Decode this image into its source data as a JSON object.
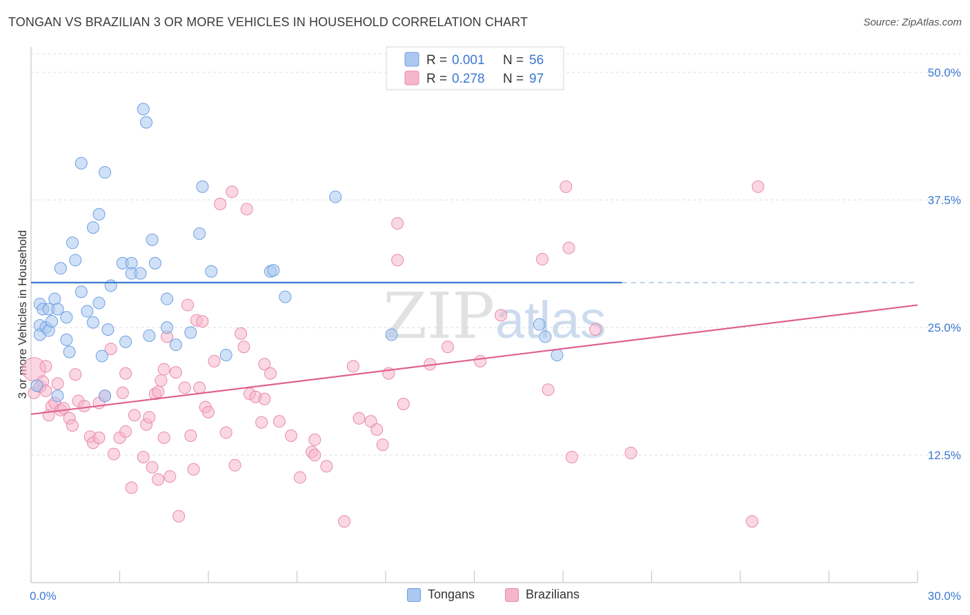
{
  "title": "TONGAN VS BRAZILIAN 3 OR MORE VEHICLES IN HOUSEHOLD CORRELATION CHART",
  "source": "Source: ZipAtlas.com",
  "watermark": "ZIPatlas",
  "colors": {
    "tongans_fill": "#aac8f0",
    "tongans_stroke": "#6d9ee0",
    "tongans_line": "#3a78d0",
    "brazilians_fill": "#f5b6cc",
    "brazilians_stroke": "#e88aaa",
    "brazilians_line": "#e06090",
    "axis_value": "#3a78d0",
    "grid": "#dddddd"
  },
  "legend": {
    "rows": [
      {
        "r_label": "R = ",
        "r_value": "0.001",
        "n_label": "N = ",
        "n_value": "56"
      },
      {
        "r_label": "R = ",
        "r_value": "0.278",
        "n_label": "N = ",
        "n_value": "97"
      }
    ]
  },
  "bottom_legend": [
    {
      "label": "Tongans"
    },
    {
      "label": "Brazilians"
    }
  ],
  "chart_data": {
    "type": "scatter",
    "title": "TONGAN VS BRAZILIAN 3 OR MORE VEHICLES IN HOUSEHOLD CORRELATION CHART",
    "xlabel": "",
    "ylabel": "3 or more Vehicles in Household",
    "xlim": [
      0,
      30
    ],
    "ylim": [
      0,
      52.5
    ],
    "x_tick_labels": [
      "0.0%",
      "30.0%"
    ],
    "y_ticks": [
      12.5,
      25.0,
      37.5,
      50.0
    ],
    "y_tick_labels": [
      "12.5%",
      "25.0%",
      "37.5%",
      "50.0%"
    ],
    "grid": true,
    "series": [
      {
        "name": "Tongans",
        "R": 0.001,
        "N": 56,
        "trend": {
          "x0": 0,
          "y0": 29.4,
          "x1": 20,
          "y1": 29.4,
          "dashed_to": 30
        },
        "points": [
          [
            0.3,
            27.3
          ],
          [
            0.3,
            25.2
          ],
          [
            0.2,
            19.3
          ],
          [
            0.3,
            24.3
          ],
          [
            0.4,
            26.8
          ],
          [
            0.5,
            25.0
          ],
          [
            0.6,
            26.8
          ],
          [
            0.6,
            24.7
          ],
          [
            0.8,
            27.8
          ],
          [
            0.7,
            25.6
          ],
          [
            0.9,
            26.8
          ],
          [
            0.9,
            18.3
          ],
          [
            1.2,
            26.0
          ],
          [
            1.2,
            23.8
          ],
          [
            1.3,
            22.6
          ],
          [
            1.0,
            30.8
          ],
          [
            1.4,
            33.3
          ],
          [
            1.5,
            31.6
          ],
          [
            1.9,
            26.6
          ],
          [
            2.1,
            25.5
          ],
          [
            1.7,
            28.5
          ],
          [
            2.1,
            34.8
          ],
          [
            1.7,
            41.1
          ],
          [
            2.3,
            27.4
          ],
          [
            2.5,
            40.2
          ],
          [
            2.3,
            36.1
          ],
          [
            2.4,
            22.2
          ],
          [
            2.5,
            18.3
          ],
          [
            2.6,
            24.8
          ],
          [
            2.7,
            29.1
          ],
          [
            3.1,
            31.3
          ],
          [
            3.2,
            23.6
          ],
          [
            3.4,
            31.3
          ],
          [
            3.4,
            30.3
          ],
          [
            3.7,
            30.3
          ],
          [
            3.8,
            46.4
          ],
          [
            3.9,
            45.1
          ],
          [
            4.0,
            24.2
          ],
          [
            4.1,
            33.6
          ],
          [
            4.2,
            31.3
          ],
          [
            4.6,
            25.0
          ],
          [
            4.6,
            27.8
          ],
          [
            4.9,
            23.3
          ],
          [
            5.4,
            24.5
          ],
          [
            5.7,
            34.2
          ],
          [
            5.8,
            38.8
          ],
          [
            6.1,
            30.5
          ],
          [
            6.6,
            22.3
          ],
          [
            8.1,
            30.5
          ],
          [
            8.2,
            30.6
          ],
          [
            8.6,
            28.0
          ],
          [
            10.3,
            37.8
          ],
          [
            12.2,
            24.3
          ],
          [
            17.4,
            24.1
          ],
          [
            17.8,
            22.3
          ],
          [
            17.2,
            25.3
          ]
        ]
      },
      {
        "name": "Brazilians",
        "R": 0.278,
        "N": 97,
        "trend": {
          "x0": 0,
          "y0": 16.5,
          "x1": 30,
          "y1": 27.2
        },
        "points": [
          [
            0.1,
            20.9
          ],
          [
            0.1,
            18.6
          ],
          [
            0.3,
            19.2
          ],
          [
            0.4,
            19.7
          ],
          [
            0.5,
            18.8
          ],
          [
            0.5,
            21.2
          ],
          [
            0.6,
            16.4
          ],
          [
            0.7,
            17.3
          ],
          [
            0.8,
            17.6
          ],
          [
            0.9,
            19.5
          ],
          [
            1.0,
            16.9
          ],
          [
            1.1,
            17.1
          ],
          [
            1.3,
            16.1
          ],
          [
            1.4,
            15.4
          ],
          [
            1.5,
            20.4
          ],
          [
            1.6,
            17.8
          ],
          [
            1.8,
            17.3
          ],
          [
            2.0,
            14.3
          ],
          [
            2.1,
            13.7
          ],
          [
            2.3,
            14.2
          ],
          [
            2.3,
            17.6
          ],
          [
            2.5,
            18.3
          ],
          [
            2.7,
            22.9
          ],
          [
            2.8,
            12.6
          ],
          [
            3.0,
            14.2
          ],
          [
            3.1,
            18.6
          ],
          [
            3.2,
            14.8
          ],
          [
            3.2,
            20.5
          ],
          [
            3.4,
            9.3
          ],
          [
            3.5,
            16.4
          ],
          [
            3.8,
            12.3
          ],
          [
            3.9,
            15.5
          ],
          [
            4.0,
            16.2
          ],
          [
            4.1,
            11.3
          ],
          [
            4.2,
            18.5
          ],
          [
            4.3,
            18.7
          ],
          [
            4.3,
            10.1
          ],
          [
            4.4,
            19.8
          ],
          [
            4.5,
            14.2
          ],
          [
            4.5,
            20.9
          ],
          [
            4.6,
            24.1
          ],
          [
            4.7,
            10.4
          ],
          [
            4.9,
            20.6
          ],
          [
            5.0,
            6.5
          ],
          [
            5.2,
            19.1
          ],
          [
            5.3,
            27.2
          ],
          [
            5.4,
            14.4
          ],
          [
            5.5,
            11.1
          ],
          [
            5.6,
            25.7
          ],
          [
            5.7,
            19.1
          ],
          [
            5.8,
            25.6
          ],
          [
            5.9,
            17.2
          ],
          [
            6.0,
            16.7
          ],
          [
            6.2,
            21.7
          ],
          [
            6.4,
            37.1
          ],
          [
            6.6,
            14.7
          ],
          [
            6.8,
            38.3
          ],
          [
            6.9,
            11.5
          ],
          [
            7.1,
            24.4
          ],
          [
            7.2,
            23.1
          ],
          [
            7.3,
            36.6
          ],
          [
            7.4,
            18.5
          ],
          [
            7.6,
            18.2
          ],
          [
            7.8,
            15.7
          ],
          [
            7.9,
            21.4
          ],
          [
            7.9,
            18.0
          ],
          [
            8.1,
            20.5
          ],
          [
            8.4,
            15.8
          ],
          [
            8.8,
            14.4
          ],
          [
            9.1,
            10.3
          ],
          [
            9.5,
            12.8
          ],
          [
            9.6,
            12.5
          ],
          [
            9.6,
            14.0
          ],
          [
            10.0,
            11.4
          ],
          [
            10.6,
            6.0
          ],
          [
            10.9,
            21.2
          ],
          [
            11.1,
            16.1
          ],
          [
            11.5,
            15.8
          ],
          [
            11.7,
            15.0
          ],
          [
            11.9,
            13.5
          ],
          [
            12.1,
            20.5
          ],
          [
            12.4,
            35.2
          ],
          [
            12.4,
            31.6
          ],
          [
            12.6,
            17.5
          ],
          [
            13.5,
            21.4
          ],
          [
            14.1,
            23.1
          ],
          [
            15.2,
            21.7
          ],
          [
            15.9,
            26.2
          ],
          [
            17.3,
            31.7
          ],
          [
            17.5,
            18.9
          ],
          [
            18.1,
            38.8
          ],
          [
            18.2,
            32.8
          ],
          [
            18.3,
            12.3
          ],
          [
            19.1,
            24.8
          ],
          [
            24.6,
            38.8
          ],
          [
            24.4,
            6.0
          ],
          [
            20.3,
            12.7
          ]
        ]
      }
    ]
  }
}
